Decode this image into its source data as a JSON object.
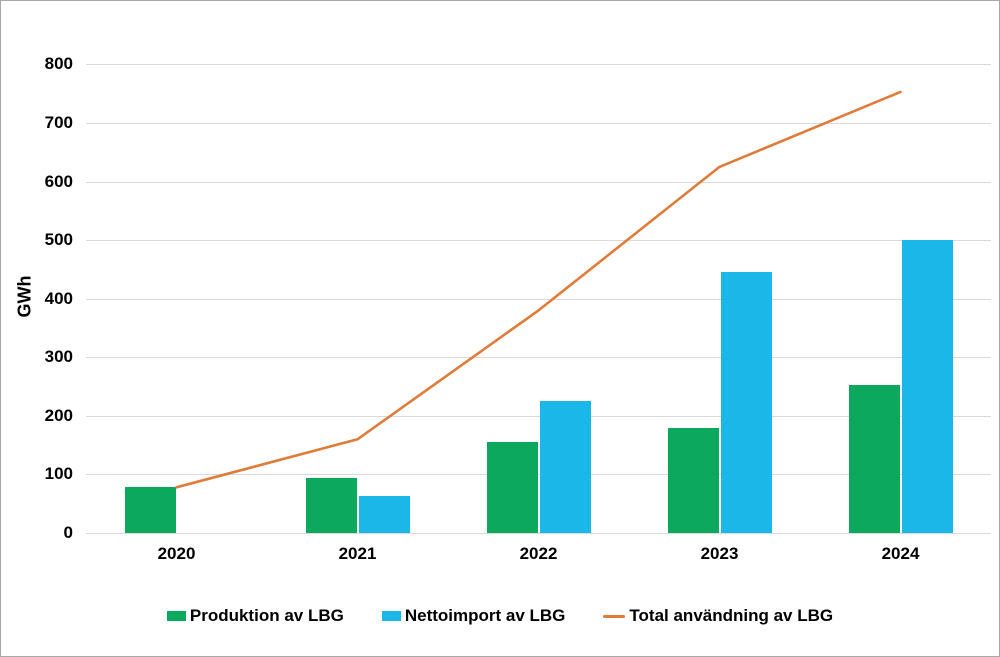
{
  "chart_data": {
    "type": "bar",
    "subtype": "grouped-bars-with-line-overlay",
    "title": "",
    "categories": [
      "2020",
      "2021",
      "2022",
      "2023",
      "2024"
    ],
    "series": [
      {
        "name": "Produktion av LBG",
        "type": "bar",
        "color": "#0ca85e",
        "values": [
          78,
          94,
          155,
          180,
          253
        ]
      },
      {
        "name": "Nettoimport av LBG",
        "type": "bar",
        "color": "#1ab7e8",
        "values": [
          0,
          63,
          225,
          445,
          500
        ]
      },
      {
        "name": "Total användning av LBG",
        "type": "line",
        "color": "#e07b39",
        "values": [
          78,
          160,
          380,
          625,
          753
        ]
      }
    ],
    "xlabel": "",
    "ylabel": "GWh",
    "ylim": [
      0,
      800
    ],
    "yticks": [
      0,
      100,
      200,
      300,
      400,
      500,
      600,
      700,
      800
    ],
    "grid": true,
    "gridline_color": "#d9d9d9",
    "legend_position": "bottom"
  }
}
